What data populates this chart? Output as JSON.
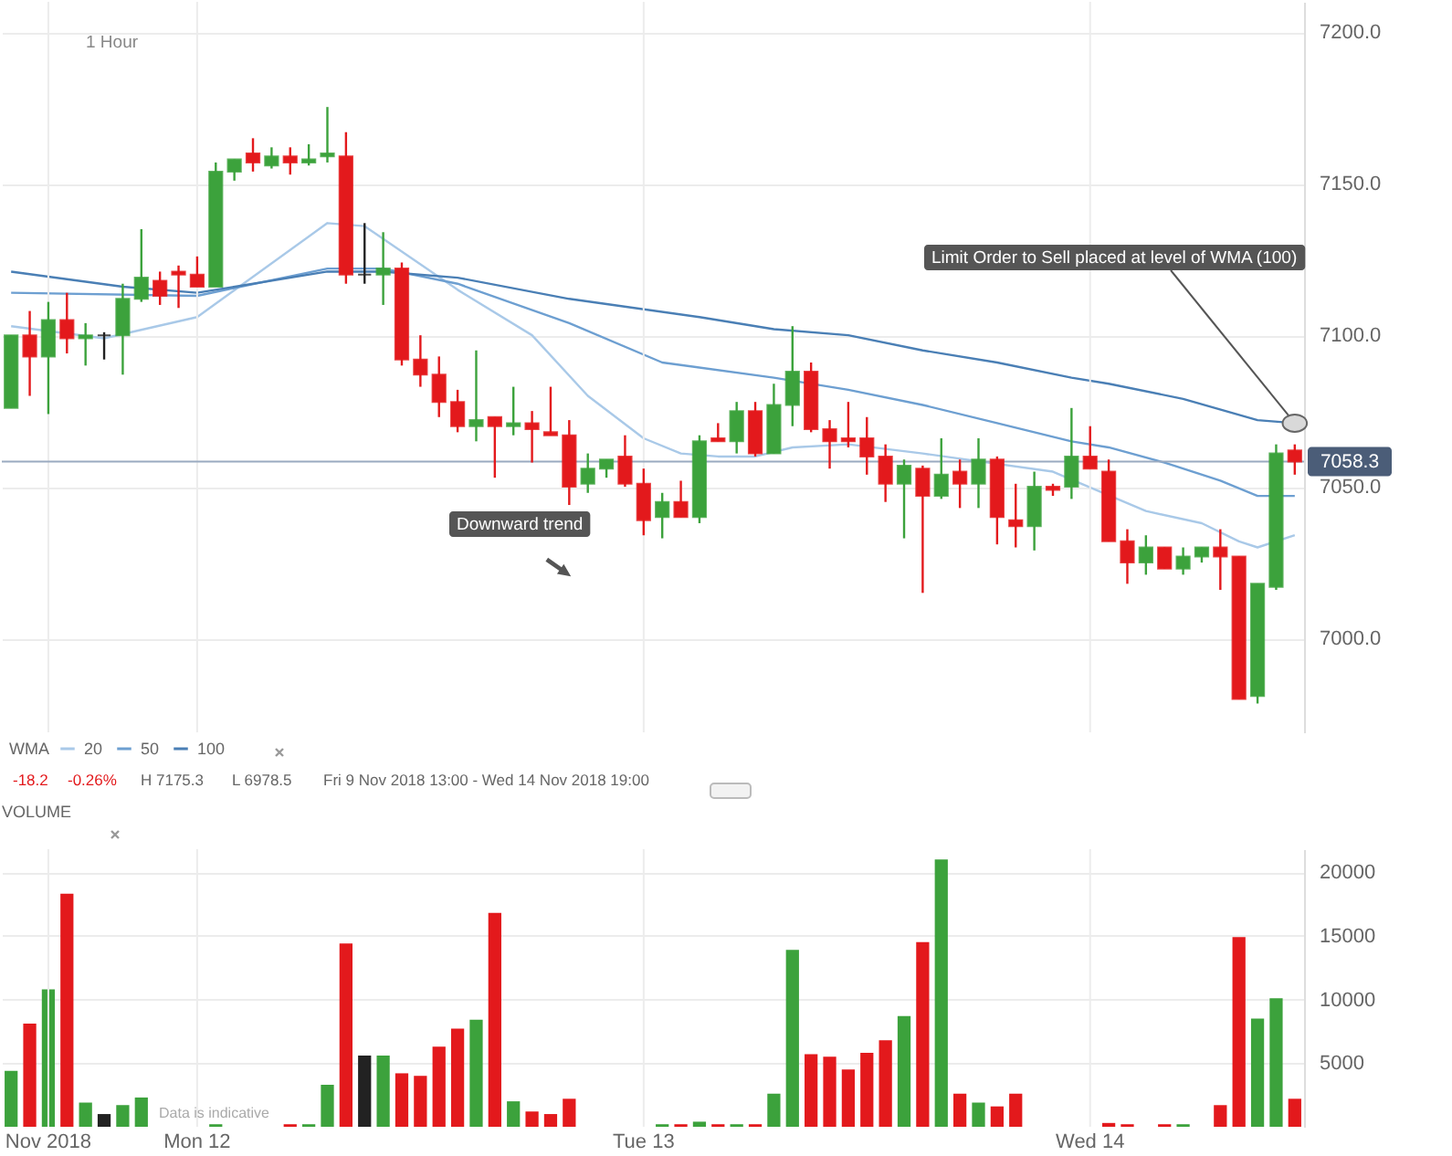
{
  "chart_data": [
    {
      "type": "candlestick",
      "subtitle": "1 Hour",
      "categories": [
        null,
        null,
        null,
        null,
        null,
        null,
        null,
        null,
        null,
        null,
        null,
        null,
        null,
        null,
        null,
        null,
        null,
        null,
        null,
        null,
        null,
        null,
        null,
        null,
        null,
        null,
        null,
        null,
        null,
        null,
        null,
        null,
        null,
        null,
        null,
        null,
        null,
        null,
        null,
        null,
        null,
        null,
        null,
        null,
        null,
        null,
        null,
        null,
        null,
        null,
        null,
        null,
        null,
        null,
        null,
        null,
        null,
        null,
        null,
        null,
        null,
        null,
        null,
        null,
        null,
        null,
        null,
        null,
        null,
        null
      ],
      "ohlc": [
        [
          7076,
          7100,
          7076,
          7100
        ],
        [
          7100,
          7108,
          7080,
          7093
        ],
        [
          7093,
          7111,
          7074,
          7105
        ],
        [
          7105,
          7114,
          7094,
          7099
        ],
        [
          7099,
          7104,
          7090,
          7100
        ],
        [
          7100,
          7101,
          7092,
          7100
        ],
        [
          7100,
          7117,
          7087,
          7112
        ],
        [
          7112,
          7135,
          7111,
          7119
        ],
        [
          7118,
          7121,
          7110,
          7113
        ],
        [
          7121,
          7123,
          7109,
          7120
        ],
        [
          7120,
          7126,
          7116,
          7116
        ],
        [
          7116,
          7157,
          7116,
          7154
        ],
        [
          7154,
          7158,
          7151,
          7158
        ],
        [
          7160,
          7165,
          7154,
          7157
        ],
        [
          7156,
          7162,
          7155,
          7159
        ],
        [
          7159,
          7162,
          7153,
          7157
        ],
        [
          7157,
          7163,
          7156,
          7158
        ],
        [
          7159,
          7175.3,
          7157,
          7160
        ],
        [
          7159,
          7167,
          7117,
          7120
        ],
        [
          7120,
          7137,
          7117,
          7120
        ],
        [
          7120,
          7134,
          7110,
          7122
        ],
        [
          7122,
          7124,
          7090,
          7092
        ],
        [
          7092,
          7100,
          7083,
          7087
        ],
        [
          7087,
          7093,
          7073,
          7078
        ],
        [
          7078,
          7082,
          7068,
          7070
        ],
        [
          7070,
          7095,
          7065,
          7072
        ],
        [
          7073,
          7073,
          7053,
          7070
        ],
        [
          7070,
          7083,
          7067,
          7071
        ],
        [
          7071,
          7075,
          7058,
          7069
        ],
        [
          7068,
          7083,
          7067,
          7067
        ],
        [
          7067,
          7072,
          7044,
          7050
        ],
        [
          7051,
          7061,
          7048,
          7056
        ],
        [
          7056,
          7059,
          7053,
          7059
        ],
        [
          7060,
          7067,
          7050,
          7051
        ],
        [
          7051,
          7056,
          7034,
          7039
        ],
        [
          7040,
          7048,
          7033,
          7045
        ],
        [
          7045,
          7052,
          7040,
          7040
        ],
        [
          7040,
          7067,
          7038,
          7065
        ],
        [
          7066,
          7071,
          7065,
          7065
        ],
        [
          7065,
          7078,
          7061,
          7075
        ],
        [
          7075,
          7078,
          7060,
          7061
        ],
        [
          7061,
          7084,
          7061,
          7077
        ],
        [
          7077,
          7103,
          7070,
          7088
        ],
        [
          7088,
          7091,
          7068,
          7069
        ],
        [
          7069,
          7072,
          7056,
          7065
        ],
        [
          7066,
          7078,
          7063,
          7065
        ],
        [
          7066,
          7073,
          7054,
          7060
        ],
        [
          7060,
          7064,
          7045,
          7051
        ],
        [
          7051,
          7059,
          7033,
          7057
        ],
        [
          7056,
          7057,
          7015,
          7047
        ],
        [
          7047,
          7066,
          7046,
          7054
        ],
        [
          7055,
          7059,
          7043,
          7051
        ],
        [
          7051,
          7066,
          7043,
          7059
        ],
        [
          7059,
          7060,
          7031,
          7040
        ],
        [
          7039,
          7051,
          7030,
          7037
        ],
        [
          7037,
          7055,
          7029,
          7050
        ],
        [
          7050,
          7051,
          7047,
          7049
        ],
        [
          7050,
          7076,
          7046,
          7060
        ],
        [
          7060,
          7070,
          7056,
          7056
        ],
        [
          7055,
          7059,
          7032,
          7032
        ],
        [
          7032,
          7036,
          7018,
          7025
        ],
        [
          7025,
          7034,
          7021,
          7030
        ],
        [
          7030,
          7030,
          7023,
          7023
        ],
        [
          7023,
          7030,
          7021,
          7027
        ],
        [
          7027,
          7030,
          7025,
          7030
        ],
        [
          7030,
          7036,
          7016,
          7027
        ],
        [
          7027,
          7027,
          6980,
          6980
        ],
        [
          6981,
          7018,
          6978.5,
          7018
        ],
        [
          7017,
          7064,
          7016,
          7061
        ],
        [
          7062,
          7064,
          7054,
          7058.3
        ]
      ],
      "colors": [
        "#3ca23c",
        "#e3191c",
        "#3ca23c",
        "#e3191c",
        "#3ca23c",
        "#222222",
        "#3ca23c",
        "#3ca23c",
        "#e3191c",
        "#e3191c",
        "#e3191c",
        "#3ca23c",
        "#3ca23c",
        "#e3191c",
        "#3ca23c",
        "#e3191c",
        "#3ca23c",
        "#3ca23c",
        "#e3191c",
        "#222222",
        "#3ca23c",
        "#e3191c",
        "#e3191c",
        "#e3191c",
        "#e3191c",
        "#3ca23c",
        "#e3191c",
        "#3ca23c",
        "#e3191c",
        "#e3191c",
        "#e3191c",
        "#3ca23c",
        "#3ca23c",
        "#e3191c",
        "#e3191c",
        "#3ca23c",
        "#e3191c",
        "#3ca23c",
        "#e3191c",
        "#3ca23c",
        "#e3191c",
        "#3ca23c",
        "#3ca23c",
        "#e3191c",
        "#e3191c",
        "#e3191c",
        "#e3191c",
        "#e3191c",
        "#3ca23c",
        "#e3191c",
        "#3ca23c",
        "#e3191c",
        "#3ca23c",
        "#e3191c",
        "#e3191c",
        "#3ca23c",
        "#e3191c",
        "#3ca23c",
        "#e3191c",
        "#e3191c",
        "#e3191c",
        "#3ca23c",
        "#e3191c",
        "#3ca23c",
        "#3ca23c",
        "#e3191c",
        "#e3191c",
        "#3ca23c",
        "#3ca23c",
        "#e3191c"
      ],
      "series": [
        {
          "name": "20",
          "type": "line",
          "color": "#a9c9e8",
          "values": [
            7103,
            null,
            null,
            null,
            null,
            7099,
            null,
            null,
            null,
            null,
            7106,
            null,
            null,
            null,
            null,
            null,
            null,
            7137,
            null,
            7136,
            null,
            null,
            null,
            null,
            7115,
            null,
            null,
            null,
            7100,
            null,
            null,
            7080,
            null,
            null,
            7066,
            null,
            7061,
            null,
            7060,
            null,
            7060,
            null,
            7063,
            null,
            null,
            7064,
            null,
            null,
            null,
            7061,
            null,
            null,
            null,
            null,
            null,
            null,
            7055,
            null,
            null,
            null,
            null,
            7042,
            null,
            null,
            7038,
            null,
            7032,
            7030,
            null,
            7034
          ]
        },
        {
          "name": "50",
          "type": "line",
          "color": "#6d9fd1",
          "values": [
            7114,
            null,
            null,
            null,
            null,
            null,
            null,
            null,
            null,
            null,
            7113,
            null,
            null,
            null,
            null,
            null,
            null,
            7122,
            null,
            null,
            7122,
            null,
            null,
            null,
            7117,
            null,
            null,
            null,
            null,
            null,
            7104,
            null,
            null,
            null,
            null,
            7091,
            null,
            null,
            null,
            null,
            null,
            7086,
            null,
            null,
            null,
            7082,
            null,
            null,
            null,
            7077,
            null,
            null,
            null,
            7071,
            null,
            null,
            null,
            7065,
            null,
            7063,
            null,
            null,
            7058,
            null,
            null,
            7052,
            null,
            7047,
            null,
            7047
          ]
        },
        {
          "name": "100",
          "type": "line",
          "color": "#4a7fb5",
          "values": [
            7121,
            null,
            null,
            null,
            null,
            null,
            7116,
            null,
            null,
            null,
            7114,
            null,
            null,
            null,
            null,
            null,
            null,
            7121,
            null,
            null,
            7121,
            null,
            null,
            null,
            7119,
            null,
            null,
            null,
            null,
            null,
            7112,
            null,
            null,
            null,
            null,
            null,
            null,
            7106,
            null,
            null,
            null,
            7102,
            null,
            null,
            null,
            7100,
            null,
            null,
            null,
            7095,
            null,
            null,
            null,
            7091,
            null,
            null,
            null,
            7086,
            null,
            7084,
            null,
            null,
            null,
            7079,
            null,
            null,
            null,
            7072,
            null,
            7071
          ]
        }
      ],
      "ylim": [
        6969,
        7210
      ],
      "yticks": [
        {
          "value": 7000,
          "label": "7000.0"
        },
        {
          "value": 7050,
          "label": "7050.0"
        },
        {
          "value": 7100,
          "label": "7100.0"
        },
        {
          "value": 7150,
          "label": "7150.0"
        },
        {
          "value": 7200,
          "label": "7200.0"
        }
      ],
      "tick_labels": "y",
      "grid": true,
      "legend": "bottom left",
      "legend_title": "WMA",
      "marker": "none",
      "ref_lines": [
        {
          "axis": "y",
          "value": 7058.3,
          "label": "7058.3",
          "color": "#9aaac0"
        }
      ],
      "annotations": [
        "Downward trend",
        "Limit Order to Sell placed at level of WMA (100)",
        "-18.2",
        "-0.26%",
        "H 7175.3",
        "L 6978.5",
        "Fri 9 Nov 2018 13:00 - Wed 14 Nov 2018 19:00"
      ]
    },
    {
      "type": "bar",
      "title": "VOLUME",
      "categories": [
        null,
        null,
        "Nov 2018",
        null,
        null,
        null,
        null,
        null,
        null,
        null,
        "Mon 12",
        null,
        null,
        null,
        null,
        null,
        null,
        null,
        null,
        null,
        null,
        null,
        null,
        null,
        null,
        null,
        null,
        null,
        null,
        null,
        null,
        null,
        null,
        null,
        "Tue 13",
        null,
        null,
        null,
        null,
        null,
        null,
        null,
        null,
        null,
        null,
        null,
        null,
        null,
        null,
        null,
        null,
        null,
        null,
        null,
        null,
        null,
        null,
        null,
        "Wed 14",
        null,
        null,
        null,
        null,
        null,
        null,
        null,
        null,
        null,
        null,
        null
      ],
      "values": [
        4400,
        8100,
        10800,
        18300,
        1900,
        1000,
        1700,
        2300,
        null,
        null,
        null,
        200,
        null,
        null,
        null,
        200,
        200,
        3300,
        14400,
        5600,
        5600,
        4200,
        4000,
        6300,
        7700,
        8400,
        16800,
        2000,
        1200,
        1000,
        2200,
        null,
        null,
        null,
        null,
        200,
        200,
        400,
        200,
        200,
        200,
        2600,
        13900,
        5700,
        5500,
        4500,
        5800,
        6800,
        8700,
        14500,
        21000,
        2600,
        1900,
        1600,
        2600,
        null,
        null,
        null,
        null,
        300,
        200,
        null,
        200,
        200,
        null,
        1700,
        14900,
        8500,
        10100,
        2200
      ],
      "colors": [
        "#3ca23c",
        "#e3191c",
        "#3ca23c",
        "#e3191c",
        "#3ca23c",
        "#222222",
        "#3ca23c",
        "#3ca23c",
        null,
        null,
        null,
        "#3ca23c",
        null,
        null,
        null,
        "#e3191c",
        "#3ca23c",
        "#3ca23c",
        "#e3191c",
        "#222222",
        "#3ca23c",
        "#e3191c",
        "#e3191c",
        "#e3191c",
        "#e3191c",
        "#3ca23c",
        "#e3191c",
        "#3ca23c",
        "#e3191c",
        "#e3191c",
        "#e3191c",
        null,
        null,
        null,
        null,
        "#3ca23c",
        "#e3191c",
        "#3ca23c",
        "#e3191c",
        "#3ca23c",
        "#e3191c",
        "#3ca23c",
        "#3ca23c",
        "#e3191c",
        "#e3191c",
        "#e3191c",
        "#e3191c",
        "#e3191c",
        "#3ca23c",
        "#e3191c",
        "#3ca23c",
        "#e3191c",
        "#3ca23c",
        "#e3191c",
        "#e3191c",
        null,
        null,
        null,
        null,
        "#e3191c",
        "#e3191c",
        null,
        "#e3191c",
        "#3ca23c",
        null,
        "#e3191c",
        "#e3191c",
        "#3ca23c",
        "#3ca23c",
        "#e3191c"
      ],
      "ylim": [
        0,
        21800
      ],
      "yticks": [
        5000,
        10000,
        15000,
        20000
      ],
      "grid": true,
      "annotations": [
        "Data is indicative"
      ]
    }
  ]
}
